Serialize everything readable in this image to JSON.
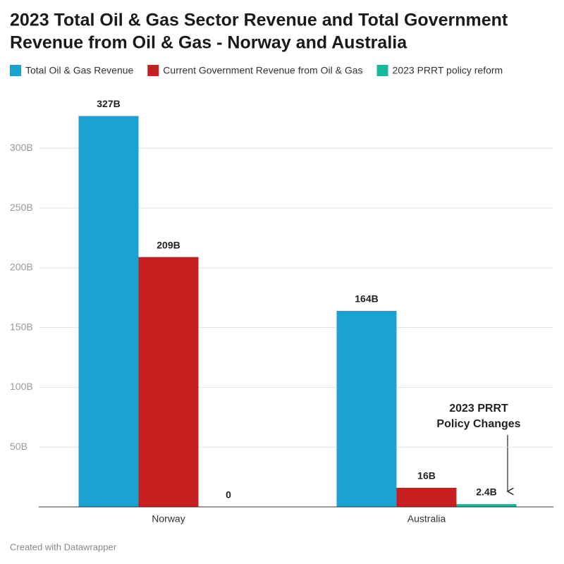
{
  "chart_data": {
    "type": "bar",
    "title_lines": [
      "2023 Total Oil & Gas Sector Revenue and Total Government",
      "Revenue from Oil & Gas - Norway and Australia"
    ],
    "categories": [
      "Norway",
      "Australia"
    ],
    "series": [
      {
        "name": "Total Oil & Gas Revenue",
        "color": "#1ba2d0",
        "values": [
          327,
          164
        ],
        "value_labels": [
          "327B",
          "164B"
        ]
      },
      {
        "name": "Current Government Revenue from Oil & Gas",
        "color": "#c71f1f",
        "values": [
          209,
          16
        ],
        "value_labels": [
          "209B",
          "16B"
        ]
      },
      {
        "name": "2023 PRRT policy reform",
        "color": "#17b99c",
        "values": [
          0,
          2.4
        ],
        "value_labels": [
          "0",
          "2.4B"
        ]
      }
    ],
    "ylim": [
      0,
      345
    ],
    "yticks": [
      {
        "value": 50,
        "label": "50B"
      },
      {
        "value": 100,
        "label": "100B"
      },
      {
        "value": 150,
        "label": "150B"
      },
      {
        "value": 200,
        "label": "200B"
      },
      {
        "value": 250,
        "label": "250B"
      },
      {
        "value": 300,
        "label": "300B"
      }
    ],
    "grid": true,
    "annotation": [
      "2023 PRRT",
      "Policy Changes"
    ],
    "footer": "Created with Datawrapper"
  }
}
